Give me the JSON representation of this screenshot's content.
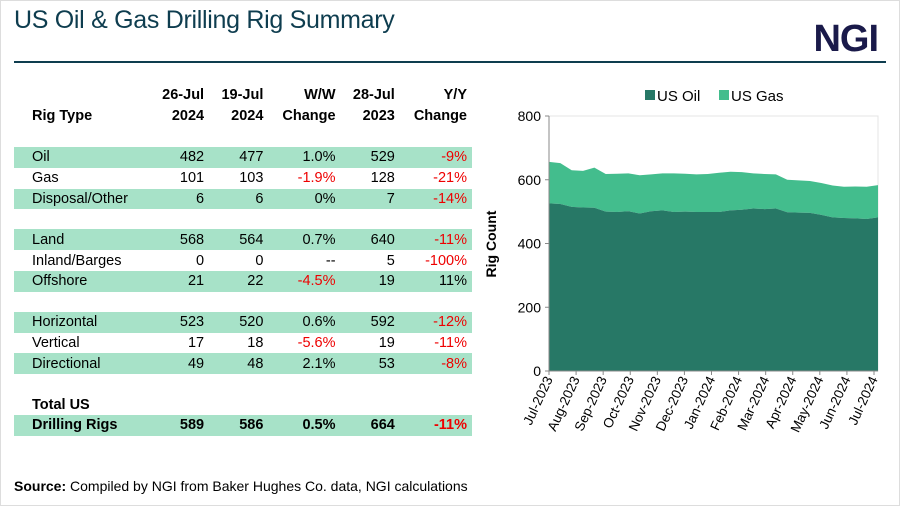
{
  "title": "US Oil & Gas Drilling Rig Summary",
  "logo": "NGI",
  "table": {
    "headers": [
      [
        "",
        "Rig Type"
      ],
      [
        "26-Jul",
        "2024"
      ],
      [
        "19-Jul",
        "2024"
      ],
      [
        "W/W",
        "Change"
      ],
      [
        "28-Jul",
        "2023"
      ],
      [
        "Y/Y",
        "Change"
      ]
    ],
    "groups": [
      [
        [
          "Oil",
          "482",
          "477",
          "1.0%",
          "529",
          "-9%"
        ],
        [
          "Gas",
          "101",
          "103",
          "-1.9%",
          "128",
          "-21%"
        ],
        [
          "Disposal/Other",
          "6",
          "6",
          "0%",
          "7",
          "-14%"
        ]
      ],
      [
        [
          "Land",
          "568",
          "564",
          "0.7%",
          "640",
          "-11%"
        ],
        [
          "Inland/Barges",
          "0",
          "0",
          "--",
          "5",
          "-100%"
        ],
        [
          "Offshore",
          "21",
          "22",
          "-4.5%",
          "19",
          "11%"
        ]
      ],
      [
        [
          "Horizontal",
          "523",
          "520",
          "0.6%",
          "592",
          "-12%"
        ],
        [
          "Vertical",
          "17",
          "18",
          "-5.6%",
          "19",
          "-11%"
        ],
        [
          "Directional",
          "49",
          "48",
          "2.1%",
          "53",
          "-8%"
        ]
      ]
    ],
    "total": [
      [
        "Total US",
        "",
        "",
        "",
        "",
        ""
      ],
      [
        "Drilling Rigs",
        "589",
        "586",
        "0.5%",
        "664",
        "-11%"
      ]
    ]
  },
  "source_label": "Source:",
  "source_text": " Compiled by NGI from Baker Hughes Co. data, NGI calculations",
  "colors": {
    "oil": "#277866",
    "gas": "#43bd8d",
    "shade": "#a7e2c8",
    "negative": "#e00000"
  },
  "chart_data": {
    "type": "area",
    "stacked": true,
    "ylabel": "Rig Count",
    "ylim": [
      0,
      800
    ],
    "yticks": [
      0,
      200,
      400,
      600,
      800
    ],
    "xticks": [
      "Jul-2023",
      "Aug-2023",
      "Sep-2023",
      "Oct-2023",
      "Nov-2023",
      "Dec-2023",
      "Jan-2024",
      "Feb-2024",
      "Mar-2024",
      "Apr-2024",
      "May-2024",
      "Jun-2024",
      "Jul-2024"
    ],
    "legend": "top",
    "series": [
      {
        "name": "US Oil",
        "values": [
          526,
          524,
          515,
          513,
          512,
          500,
          499,
          501,
          494,
          501,
          504,
          499,
          500,
          499,
          499,
          499,
          504,
          506,
          510,
          508,
          510,
          498,
          497,
          496,
          490,
          482,
          480,
          479,
          477,
          482
        ]
      },
      {
        "name": "US Gas",
        "values": [
          130,
          128,
          115,
          115,
          126,
          118,
          120,
          119,
          120,
          116,
          116,
          121,
          119,
          118,
          119,
          123,
          121,
          118,
          110,
          110,
          107,
          102,
          101,
          100,
          100,
          100,
          98,
          100,
          101,
          101
        ]
      }
    ]
  }
}
